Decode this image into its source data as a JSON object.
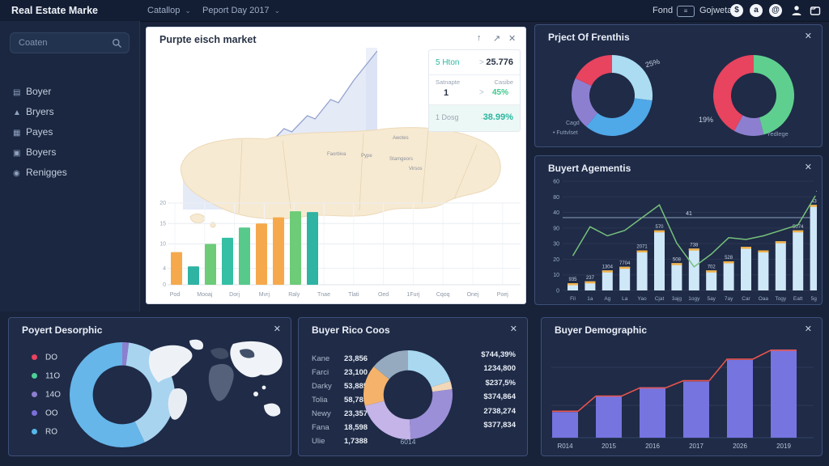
{
  "topbar": {
    "title": "Real Estate Marke",
    "menus": [
      {
        "label": "Catallop"
      },
      {
        "label": "Peport Day 2017"
      }
    ],
    "chevron": "⌄",
    "fond_label": "Fond",
    "badge_glyph": "≡",
    "gojweta_label": "Gojweta",
    "icons": [
      {
        "name": "dollar-icon",
        "glyph": "$"
      },
      {
        "name": "camera-icon",
        "glyph": "a"
      },
      {
        "name": "at-icon",
        "glyph": "@"
      }
    ]
  },
  "sidebar": {
    "search_value": "Coaten",
    "items": [
      {
        "label": "Boyer",
        "glyph": "▤"
      },
      {
        "label": "Bryers",
        "glyph": "▲"
      },
      {
        "label": "Payes",
        "glyph": "▦"
      },
      {
        "label": "Boyers",
        "glyph": "▣"
      },
      {
        "label": "Renigges",
        "glyph": "◉"
      }
    ]
  },
  "main_panel": {
    "title": "Purpte eisch market",
    "header_icons": [
      {
        "name": "upload-icon",
        "glyph": "↑"
      },
      {
        "name": "expand-icon",
        "glyph": "↗"
      },
      {
        "name": "close-icon",
        "glyph": "✕"
      }
    ],
    "stats": {
      "row1_label": "5 Hton",
      "row1_arrow": ">",
      "row1_value": "25.776",
      "row2_col1_label": "Satnapte",
      "row2_col1_value": "1",
      "row2_arrow": ">",
      "row2_col2_label": "Casibe",
      "row2_col2_value": "45%",
      "row3_label": "1 Dosg",
      "row3_arrow": "→",
      "row3_value": "38.99%"
    },
    "map_labels": [
      {
        "text": "Faorbiva"
      },
      {
        "text": "Pype"
      },
      {
        "text": "Awotes"
      },
      {
        "text": "Stamgeors"
      },
      {
        "text": "Virsos"
      }
    ]
  },
  "panels": {
    "frenthis": {
      "title": "Prject Of Frenthis",
      "close": "✕",
      "pct1": "25%",
      "cap1_line1": "Cagd",
      "cap1_line2": "• Futtvlset",
      "pct2": "19%",
      "cap2": "Yedlege"
    },
    "agementis": {
      "title": "Buyert Agementis",
      "close": "✕"
    },
    "desorphic": {
      "title": "Poyert Desorphic",
      "close": "✕",
      "legend": [
        {
          "label": "DO",
          "color": "#e8435f"
        },
        {
          "label": "11O",
          "color": "#4ecf96"
        },
        {
          "label": "14O",
          "color": "#8d7fd0"
        },
        {
          "label": "OO",
          "color": "#7b6fd8"
        },
        {
          "label": "RO",
          "color": "#57b8e8"
        }
      ]
    },
    "rico": {
      "title": "Buyer Rico Coos",
      "close": "✕",
      "rows": [
        {
          "name": "Kane",
          "value": "23,856"
        },
        {
          "name": "Farci",
          "value": "23,100"
        },
        {
          "name": "Darky",
          "value": "53,885"
        },
        {
          "name": "Tolia",
          "value": "58,785"
        },
        {
          "name": "Newy",
          "value": "23,357"
        },
        {
          "name": "Fana",
          "value": "18,598"
        },
        {
          "name": "Ulie",
          "value": "1,7388"
        }
      ],
      "amounts": [
        "$744,39%",
        "1234,800",
        "$237,5%",
        "$374,864",
        "2738,274",
        "$377,834"
      ],
      "caption": "6014"
    },
    "demographic": {
      "title": "Buyer Demographic",
      "close": "✕"
    }
  },
  "chart_data": [
    {
      "id": "main-area",
      "type": "area",
      "title": "Purpte eisch market trend",
      "values": [
        30,
        32,
        31,
        34,
        36,
        35,
        38,
        42,
        40,
        39,
        43,
        41,
        45,
        50,
        48,
        53,
        58,
        56,
        62,
        68,
        66,
        73,
        80,
        86,
        92,
        98
      ],
      "ylim": [
        0,
        100
      ],
      "line_color": "#94a3cf",
      "fill_color": "#ccd6ef",
      "band_color": "#e6ebf7"
    },
    {
      "id": "main-bar",
      "type": "bar",
      "categories": [
        "Pod",
        "Mooaj",
        "Dorj",
        "Mvrj",
        "Raly",
        "Tnae",
        "Tlati",
        "Oed",
        "1Furj",
        "Cqoq",
        "Onej",
        "Poej"
      ],
      "values": [
        8,
        4.5,
        10,
        11.5,
        14,
        15,
        16.5,
        18,
        17.8,
        null,
        null,
        null
      ],
      "colors": [
        "#f6a94c",
        "#2fb3a3",
        "#6ecb77",
        "#35bfa4",
        "#57c98b",
        "#f6a94c",
        "#f6a94c",
        "#6ecb77",
        "#2fb3a3"
      ],
      "y_ticks": [
        {
          "label": "20",
          "value": 20
        },
        {
          "label": "15",
          "value": 15
        },
        {
          "label": "10",
          "value": 10
        },
        {
          "label": "4",
          "value": 4
        },
        {
          "label": "0",
          "value": 0
        }
      ],
      "ylim": [
        0,
        20
      ],
      "grid": true
    },
    {
      "id": "donut-frenthis-1",
      "type": "pie",
      "segments": [
        {
          "label": "lightblue",
          "value": 27,
          "color": "#abdcf2"
        },
        {
          "label": "blue",
          "value": 34,
          "color": "#4fa8e8"
        },
        {
          "label": "purple",
          "value": 21,
          "color": "#8d7fd0"
        },
        {
          "label": "red",
          "value": 18,
          "color": "#e8435f"
        }
      ],
      "inner_ratio": 0.56,
      "annotation": "25%"
    },
    {
      "id": "donut-frenthis-2",
      "type": "pie",
      "segments": [
        {
          "label": "green",
          "value": 46,
          "color": "#5fcf8f"
        },
        {
          "label": "purple",
          "value": 12,
          "color": "#8d7fd0"
        },
        {
          "label": "red",
          "value": 42,
          "color": "#e8435f"
        }
      ],
      "inner_ratio": 0.56,
      "annotation": "19%"
    },
    {
      "id": "agementis",
      "type": "combo",
      "categories": [
        "Fil",
        "1a",
        "Ag",
        "La",
        "Yao",
        "Cjat",
        "3ajg",
        "1ogy",
        "5ay",
        "7ay",
        "Car",
        "Oaa",
        "Togy",
        "Eatt",
        "5ga"
      ],
      "bar_values": [
        4,
        5,
        11,
        13,
        22,
        33,
        15,
        23,
        11,
        16,
        24,
        22,
        27,
        33,
        47
      ],
      "bar_labels": [
        "935",
        "237",
        "1304",
        "7704",
        "2071",
        "570",
        "508",
        "738",
        "702",
        "528",
        "",
        "",
        "",
        "5074",
        "434"
      ],
      "line_values": [
        19,
        35,
        30,
        33,
        40,
        47,
        26,
        13,
        20,
        29,
        28,
        30,
        33,
        36,
        52
      ],
      "y_tick_labels": [
        "60",
        "80",
        "40",
        "90",
        "30",
        "20",
        "10",
        "0"
      ],
      "ymax": 60,
      "ref_value": 40,
      "ref_label": "41",
      "end_label": "44",
      "bar_color": "#cfe8f8",
      "cap_color": "#f0b14a",
      "line_color": "#76c17b"
    },
    {
      "id": "donut-desorphic",
      "type": "pie",
      "segments": [
        {
          "label": "purple",
          "value": 2,
          "color": "#8d7fd0"
        },
        {
          "label": "lightblue",
          "value": 41,
          "color": "#a8d4f0"
        },
        {
          "label": "blue",
          "value": 57,
          "color": "#66b6ea"
        }
      ],
      "inner_ratio": 0.56
    },
    {
      "id": "donut-rico",
      "type": "pie",
      "segments": [
        {
          "label": "lightblue",
          "value": 20,
          "color": "#a9d8f0"
        },
        {
          "label": "cream",
          "value": 3,
          "color": "#f2d8b8"
        },
        {
          "label": "purple",
          "value": 26,
          "color": "#9b8fd8"
        },
        {
          "label": "lilac",
          "value": 22,
          "color": "#c4b4e8"
        },
        {
          "label": "orange",
          "value": 15,
          "color": "#f5b26b"
        },
        {
          "label": "gray",
          "value": 14,
          "color": "#95aabf"
        }
      ],
      "inner_ratio": 0.55,
      "center_caption": "6014"
    },
    {
      "id": "demographic",
      "type": "bar+line",
      "categories": [
        "R014",
        "2015",
        "2016",
        "2017",
        "2026",
        "2019"
      ],
      "bar_values": [
        32,
        52,
        63,
        70,
        97,
        110
      ],
      "line_values": [
        33,
        52,
        62,
        71,
        98,
        109
      ],
      "ymax": 115,
      "grid_ys": [
        33,
        80
      ],
      "bar_color": "#7b78e8",
      "line_color": "#e8544c"
    }
  ]
}
